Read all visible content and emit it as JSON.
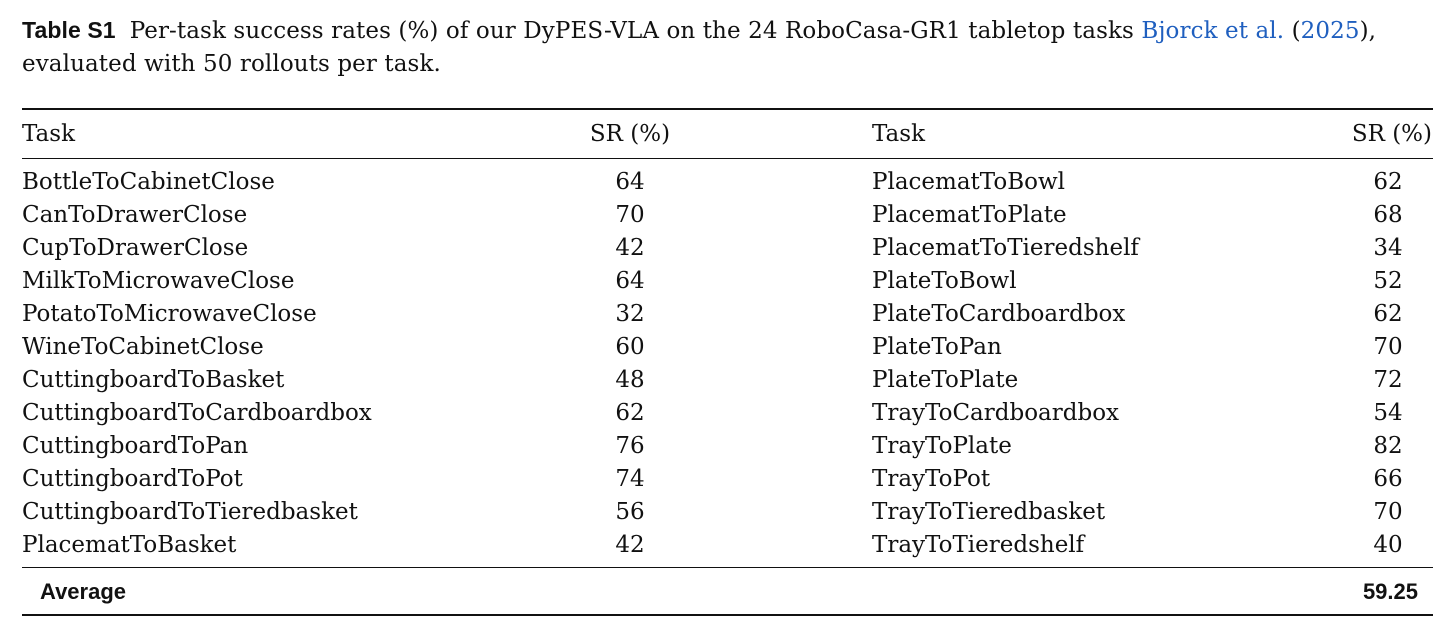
{
  "caption": {
    "label": "Table S1",
    "text_before": "Per-task success rates (%) of our DyPES-VLA on the 24 RoboCasa-GR1 tabletop tasks ",
    "cite_author": "Bjorck et al.",
    "cite_open": " (",
    "cite_year": "2025",
    "text_after": "), evaluated with 50 rollouts per task."
  },
  "table": {
    "headers": {
      "task_left": "Task",
      "sr_left": "SR (%)",
      "task_right": "Task",
      "sr_right": "SR (%)"
    },
    "left": [
      {
        "task": "BottleToCabinetClose",
        "sr": "64"
      },
      {
        "task": "CanToDrawerClose",
        "sr": "70"
      },
      {
        "task": "CupToDrawerClose",
        "sr": "42"
      },
      {
        "task": "MilkToMicrowaveClose",
        "sr": "64"
      },
      {
        "task": "PotatoToMicrowaveClose",
        "sr": "32"
      },
      {
        "task": "WineToCabinetClose",
        "sr": "60"
      },
      {
        "task": "CuttingboardToBasket",
        "sr": "48"
      },
      {
        "task": "CuttingboardToCardboardbox",
        "sr": "62"
      },
      {
        "task": "CuttingboardToPan",
        "sr": "76"
      },
      {
        "task": "CuttingboardToPot",
        "sr": "74"
      },
      {
        "task": "CuttingboardToTieredbasket",
        "sr": "56"
      },
      {
        "task": "PlacematToBasket",
        "sr": "42"
      }
    ],
    "right": [
      {
        "task": "PlacematToBowl",
        "sr": "62"
      },
      {
        "task": "PlacematToPlate",
        "sr": "68"
      },
      {
        "task": "PlacematToTieredshelf",
        "sr": "34"
      },
      {
        "task": "PlateToBowl",
        "sr": "52"
      },
      {
        "task": "PlateToCardboardbox",
        "sr": "62"
      },
      {
        "task": "PlateToPan",
        "sr": "70"
      },
      {
        "task": "PlateToPlate",
        "sr": "72"
      },
      {
        "task": "TrayToCardboardbox",
        "sr": "54"
      },
      {
        "task": "TrayToPlate",
        "sr": "82"
      },
      {
        "task": "TrayToPot",
        "sr": "66"
      },
      {
        "task": "TrayToTieredbasket",
        "sr": "70"
      },
      {
        "task": "TrayToTieredshelf",
        "sr": "40"
      }
    ],
    "average_label": "Average",
    "average_value": "59.25"
  },
  "colors": {
    "citation": "#1f5fbf",
    "text": "#111111"
  }
}
